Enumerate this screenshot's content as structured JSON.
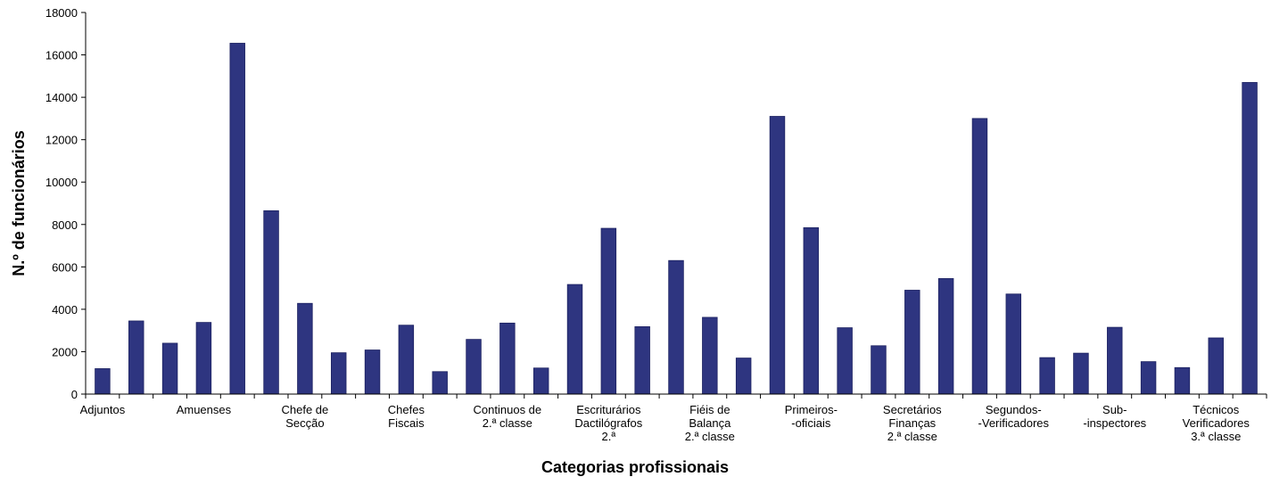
{
  "chart_data": {
    "type": "bar",
    "title": "",
    "xlabel": "Categorias profissionais",
    "ylabel": "N.º de funcionários",
    "ylim": [
      0,
      18000
    ],
    "yticks": [
      0,
      2000,
      4000,
      6000,
      8000,
      10000,
      12000,
      14000,
      16000,
      18000
    ],
    "grid": false,
    "legend": "none",
    "bar_color": "#2e3580",
    "values": [
      1200,
      3450,
      2400,
      3380,
      16550,
      8650,
      4280,
      1950,
      2080,
      3250,
      1060,
      2580,
      3350,
      1230,
      5170,
      7820,
      3180,
      6300,
      3620,
      1700,
      13100,
      7850,
      3130,
      2280,
      4900,
      5450,
      13000,
      4720,
      1720,
      1930,
      3150,
      1530,
      1250,
      2650,
      14700
    ],
    "category_labels": [
      {
        "bar_index": 0,
        "lines": [
          "Adjuntos"
        ]
      },
      {
        "bar_index": 3,
        "lines": [
          "Amuenses"
        ]
      },
      {
        "bar_index": 6,
        "lines": [
          "Chefe de",
          "Secção"
        ]
      },
      {
        "bar_index": 9,
        "lines": [
          "Chefes",
          "Fiscais"
        ]
      },
      {
        "bar_index": 12,
        "lines": [
          "Continuos de",
          "2.ª classe"
        ]
      },
      {
        "bar_index": 15,
        "lines": [
          "Escriturários",
          "Dactilógrafos",
          "2.ª"
        ]
      },
      {
        "bar_index": 18,
        "lines": [
          "Fiéis de",
          "Balança",
          "2.ª classe"
        ]
      },
      {
        "bar_index": 21,
        "lines": [
          "Primeiros-",
          "-oficiais"
        ]
      },
      {
        "bar_index": 24,
        "lines": [
          "Secretários",
          "Finanças",
          "2.ª classe"
        ]
      },
      {
        "bar_index": 27,
        "lines": [
          "Segundos-",
          "-Verificadores"
        ]
      },
      {
        "bar_index": 30,
        "lines": [
          "Sub-",
          "-inspectores"
        ]
      },
      {
        "bar_index": 33,
        "lines": [
          "Técnicos",
          "Verificadores",
          "3.ª classe"
        ]
      }
    ]
  }
}
